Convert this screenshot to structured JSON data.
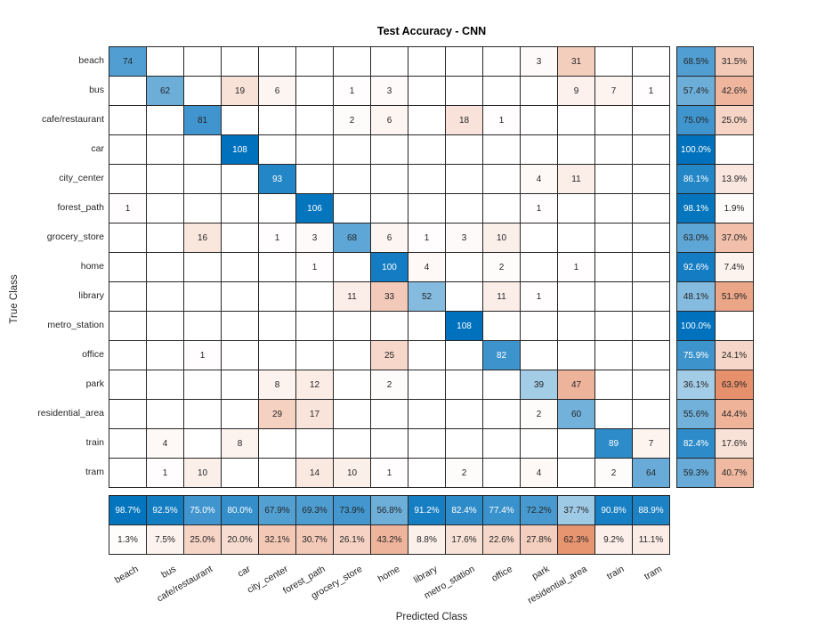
{
  "chart_data": {
    "type": "heatmap",
    "subtype": "confusion-matrix",
    "title": "Test Accuracy - CNN",
    "xlabel": "Predicted Class",
    "ylabel": "True Class",
    "classes": [
      "beach",
      "bus",
      "cafe/restaurant",
      "car",
      "city_center",
      "forest_path",
      "grocery_store",
      "home",
      "library",
      "metro_station",
      "office",
      "park",
      "residential_area",
      "train",
      "tram"
    ],
    "max_count": 108,
    "matrix": [
      [
        74,
        0,
        0,
        0,
        0,
        0,
        0,
        0,
        0,
        0,
        0,
        3,
        31,
        0,
        0
      ],
      [
        0,
        62,
        0,
        19,
        6,
        0,
        1,
        3,
        0,
        0,
        0,
        0,
        9,
        7,
        1
      ],
      [
        0,
        0,
        81,
        0,
        0,
        0,
        2,
        6,
        0,
        18,
        1,
        0,
        0,
        0,
        0
      ],
      [
        0,
        0,
        0,
        108,
        0,
        0,
        0,
        0,
        0,
        0,
        0,
        0,
        0,
        0,
        0
      ],
      [
        0,
        0,
        0,
        0,
        93,
        0,
        0,
        0,
        0,
        0,
        0,
        4,
        11,
        0,
        0
      ],
      [
        1,
        0,
        0,
        0,
        0,
        106,
        0,
        0,
        0,
        0,
        0,
        1,
        0,
        0,
        0
      ],
      [
        0,
        0,
        16,
        0,
        1,
        3,
        68,
        6,
        1,
        3,
        10,
        0,
        0,
        0,
        0
      ],
      [
        0,
        0,
        0,
        0,
        0,
        1,
        0,
        100,
        4,
        0,
        2,
        0,
        1,
        0,
        0
      ],
      [
        0,
        0,
        0,
        0,
        0,
        0,
        11,
        33,
        52,
        0,
        11,
        1,
        0,
        0,
        0
      ],
      [
        0,
        0,
        0,
        0,
        0,
        0,
        0,
        0,
        0,
        108,
        0,
        0,
        0,
        0,
        0
      ],
      [
        0,
        0,
        1,
        0,
        0,
        0,
        0,
        25,
        0,
        0,
        82,
        0,
        0,
        0,
        0
      ],
      [
        0,
        0,
        0,
        0,
        8,
        12,
        0,
        2,
        0,
        0,
        0,
        39,
        47,
        0,
        0
      ],
      [
        0,
        0,
        0,
        0,
        29,
        17,
        0,
        0,
        0,
        0,
        0,
        2,
        60,
        0,
        0
      ],
      [
        0,
        4,
        0,
        8,
        0,
        0,
        0,
        0,
        0,
        0,
        0,
        0,
        0,
        89,
        7
      ],
      [
        0,
        1,
        10,
        0,
        0,
        14,
        10,
        1,
        0,
        2,
        0,
        4,
        0,
        2,
        64
      ]
    ],
    "row_summary": {
      "correct_pct": [
        68.5,
        57.4,
        75.0,
        100.0,
        86.1,
        98.1,
        63.0,
        92.6,
        48.1,
        100.0,
        75.9,
        36.1,
        55.6,
        82.4,
        59.3
      ],
      "incorrect_pct": [
        31.5,
        42.6,
        25.0,
        null,
        13.9,
        1.9,
        37.0,
        7.4,
        51.9,
        null,
        24.1,
        63.9,
        44.4,
        17.6,
        40.7
      ]
    },
    "col_summary": {
      "correct_pct": [
        98.7,
        92.5,
        75.0,
        80.0,
        67.9,
        69.3,
        73.9,
        56.8,
        91.2,
        82.4,
        77.4,
        72.2,
        37.7,
        90.8,
        88.9
      ],
      "incorrect_pct": [
        1.3,
        7.5,
        25.0,
        20.0,
        32.1,
        30.7,
        26.1,
        43.2,
        8.8,
        17.6,
        22.6,
        27.8,
        62.3,
        9.2,
        11.1
      ]
    },
    "colors": {
      "diagonal_blue": "#0072bd",
      "off_diagonal_orange": "#d95319",
      "grid_line": "#262626",
      "text_dark": "#262626",
      "text_light": "#ffffff"
    },
    "legend": "none",
    "grid": true
  }
}
